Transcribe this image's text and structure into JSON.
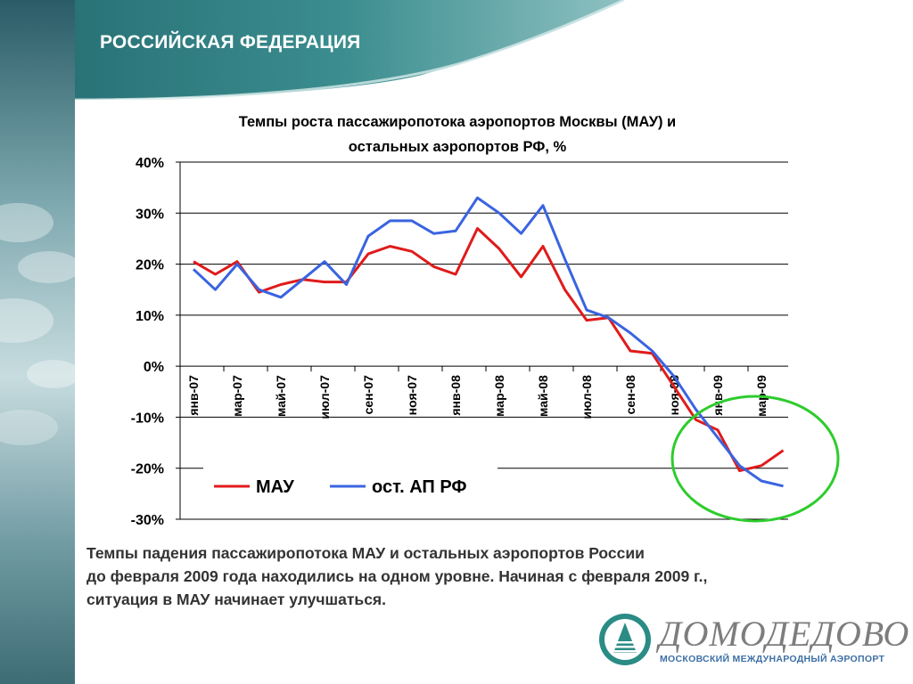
{
  "slide": {
    "heading": "РОССИЙСКАЯ ФЕДЕРАЦИЯ",
    "caption_lines": [
      "Темпы падения пассажиропотока МАУ и остальных аэропортов России",
      "до февраля 2009 года находились на одном уровне. Начиная с февраля 2009 г.,",
      "ситуация в МАУ начинает улучшаться."
    ],
    "logo": {
      "word": "ДОМОДЕДОВО",
      "subtitle": "МОСКОВСКИЙ МЕЖДУНАРОДНЫЙ АЭРОПОРТ"
    }
  },
  "colors": {
    "header_band": "#2f7f80",
    "teal_dark": "#1f5f62",
    "mau": "#e01b1b",
    "other": "#3a64e0",
    "highlight_circle": "#2ecc2e",
    "logo_teal": "#2a8c85"
  },
  "chart_data": {
    "type": "line",
    "title_lines": [
      "Темпы роста пассажиропотока аэропортов Москвы (МАУ) и",
      "остальных аэропортов РФ, %"
    ],
    "y_ticks": [
      "40%",
      "30%",
      "20%",
      "10%",
      "0%",
      "-10%",
      "-20%",
      "-30%"
    ],
    "ylim": [
      -30,
      40
    ],
    "grid": true,
    "legend_placement": "bottom-left",
    "x_tick_labels": [
      "янв-07",
      "мар-07",
      "май-07",
      "июл-07",
      "сен-07",
      "ноя-07",
      "янв-08",
      "мар-08",
      "май-08",
      "июл-08",
      "сен-08",
      "ноя-08",
      "янв-09",
      "мар-09"
    ],
    "series": [
      {
        "name": "МАУ",
        "color": "#e01b1b",
        "values": [
          20.5,
          18.0,
          20.5,
          14.5,
          16.0,
          17.0,
          16.5,
          16.5,
          22.0,
          23.5,
          22.5,
          19.5,
          18.0,
          27.0,
          23.0,
          17.5,
          23.5,
          15.0,
          9.0,
          9.5,
          3.0,
          2.5,
          -4.0,
          -10.5,
          -12.5,
          -20.5,
          -19.5,
          -16.5
        ]
      },
      {
        "name": "ост. АП РФ",
        "color": "#3a64e0",
        "values": [
          19.0,
          15.0,
          20.0,
          15.0,
          13.5,
          17.0,
          20.5,
          16.0,
          25.5,
          28.5,
          28.5,
          26.0,
          26.5,
          33.0,
          30.0,
          26.0,
          31.5,
          21.0,
          11.0,
          9.5,
          6.5,
          3.0,
          -2.0,
          -8.5,
          -14.0,
          -19.5,
          -22.5,
          -23.5
        ]
      }
    ]
  }
}
